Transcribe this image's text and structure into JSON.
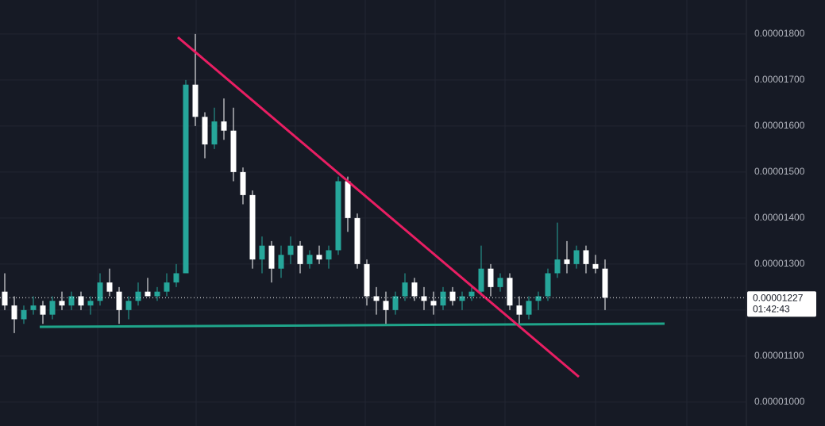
{
  "chart_data": {
    "type": "candlestick",
    "up_color": "#26a69a",
    "down_color": "#ffffff",
    "ylim": [
      9.48e-06,
      1.874e-05
    ],
    "yticks": [
      {
        "value": 1e-05,
        "label": "0.00001000"
      },
      {
        "value": 1.1e-05,
        "label": "0.00001100"
      },
      {
        "value": 1.2e-05,
        "label": "0.00001200"
      },
      {
        "value": 1.3e-05,
        "label": "0.00001300"
      },
      {
        "value": 1.4e-05,
        "label": "0.00001400"
      },
      {
        "value": 1.5e-05,
        "label": "0.00001500"
      },
      {
        "value": 1.6e-05,
        "label": "0.00001600"
      },
      {
        "value": 1.7e-05,
        "label": "0.00001700"
      },
      {
        "value": 1.8e-05,
        "label": "0.00001800"
      }
    ],
    "grid": true,
    "open": [
      1.24e-05,
      1.21e-05,
      1.18e-05,
      1.2e-05,
      1.21e-05,
      1.19e-05,
      1.22e-05,
      1.21e-05,
      1.23e-05,
      1.21e-05,
      1.22e-05,
      1.26e-05,
      1.24e-05,
      1.2e-05,
      1.22e-05,
      1.24e-05,
      1.23e-05,
      1.24e-05,
      1.26e-05,
      1.28e-05,
      1.69e-05,
      1.62e-05,
      1.56e-05,
      1.61e-05,
      1.59e-05,
      1.5e-05,
      1.45e-05,
      1.31e-05,
      1.34e-05,
      1.29e-05,
      1.32e-05,
      1.34e-05,
      1.3e-05,
      1.32e-05,
      1.31e-05,
      1.33e-05,
      1.48e-05,
      1.4e-05,
      1.3e-05,
      1.23e-05,
      1.22e-05,
      1.2e-05,
      1.23e-05,
      1.26e-05,
      1.23e-05,
      1.22e-05,
      1.21e-05,
      1.24e-05,
      1.22e-05,
      1.23e-05,
      1.24e-05,
      1.29e-05,
      1.25e-05,
      1.27e-05,
      1.21e-05,
      1.19e-05,
      1.22e-05,
      1.23e-05,
      1.28e-05,
      1.31e-05,
      1.3e-05,
      1.33e-05,
      1.3e-05,
      1.29e-05
    ],
    "high": [
      1.28e-05,
      1.23e-05,
      1.21e-05,
      1.23e-05,
      1.22e-05,
      1.23e-05,
      1.24e-05,
      1.24e-05,
      1.24e-05,
      1.23e-05,
      1.28e-05,
      1.29e-05,
      1.25e-05,
      1.23e-05,
      1.26e-05,
      1.27e-05,
      1.25e-05,
      1.28e-05,
      1.3e-05,
      1.7e-05,
      1.8e-05,
      1.63e-05,
      1.64e-05,
      1.66e-05,
      1.64e-05,
      1.51e-05,
      1.46e-05,
      1.36e-05,
      1.35e-05,
      1.34e-05,
      1.36e-05,
      1.35e-05,
      1.33e-05,
      1.34e-05,
      1.34e-05,
      1.49e-05,
      1.49e-05,
      1.41e-05,
      1.31e-05,
      1.25e-05,
      1.24e-05,
      1.24e-05,
      1.28e-05,
      1.27e-05,
      1.25e-05,
      1.24e-05,
      1.25e-05,
      1.25e-05,
      1.24e-05,
      1.25e-05,
      1.34e-05,
      1.3e-05,
      1.28e-05,
      1.28e-05,
      1.23e-05,
      1.23e-05,
      1.24e-05,
      1.29e-05,
      1.39e-05,
      1.35e-05,
      1.34e-05,
      1.34e-05,
      1.32e-05,
      1.31e-05
    ],
    "low": [
      1.2e-05,
      1.15e-05,
      1.17e-05,
      1.19e-05,
      1.17e-05,
      1.18e-05,
      1.2e-05,
      1.2e-05,
      1.2e-05,
      1.19e-05,
      1.21e-05,
      1.23e-05,
      1.17e-05,
      1.18e-05,
      1.21e-05,
      1.23e-05,
      1.22e-05,
      1.23e-05,
      1.25e-05,
      1.28e-05,
      1.6e-05,
      1.53e-05,
      1.55e-05,
      1.57e-05,
      1.48e-05,
      1.43e-05,
      1.29e-05,
      1.28e-05,
      1.26e-05,
      1.27e-05,
      1.3e-05,
      1.28e-05,
      1.29e-05,
      1.3e-05,
      1.29e-05,
      1.32e-05,
      1.37e-05,
      1.29e-05,
      1.21e-05,
      1.19e-05,
      1.17e-05,
      1.19e-05,
      1.22e-05,
      1.22e-05,
      1.2e-05,
      1.19e-05,
      1.2e-05,
      1.21e-05,
      1.2e-05,
      1.22e-05,
      1.23e-05,
      1.23e-05,
      1.24e-05,
      1.2e-05,
      1.17e-05,
      1.18e-05,
      1.2e-05,
      1.22e-05,
      1.27e-05,
      1.28e-05,
      1.29e-05,
      1.28e-05,
      1.28e-05,
      1.2e-05
    ],
    "close": [
      1.21e-05,
      1.18e-05,
      1.2e-05,
      1.21e-05,
      1.19e-05,
      1.22e-05,
      1.21e-05,
      1.23e-05,
      1.21e-05,
      1.22e-05,
      1.26e-05,
      1.24e-05,
      1.2e-05,
      1.22e-05,
      1.24e-05,
      1.23e-05,
      1.24e-05,
      1.26e-05,
      1.28e-05,
      1.69e-05,
      1.62e-05,
      1.56e-05,
      1.61e-05,
      1.59e-05,
      1.5e-05,
      1.45e-05,
      1.31e-05,
      1.34e-05,
      1.29e-05,
      1.32e-05,
      1.34e-05,
      1.3e-05,
      1.32e-05,
      1.31e-05,
      1.33e-05,
      1.48e-05,
      1.4e-05,
      1.3e-05,
      1.23e-05,
      1.22e-05,
      1.2e-05,
      1.23e-05,
      1.26e-05,
      1.23e-05,
      1.22e-05,
      1.21e-05,
      1.24e-05,
      1.22e-05,
      1.23e-05,
      1.24e-05,
      1.29e-05,
      1.25e-05,
      1.27e-05,
      1.21e-05,
      1.19e-05,
      1.22e-05,
      1.23e-05,
      1.28e-05,
      1.31e-05,
      1.3e-05,
      1.33e-05,
      1.3e-05,
      1.29e-05,
      1.227e-05
    ],
    "last_price": {
      "value": 1.227e-05,
      "label": "0.00001227"
    },
    "countdown": "01:42:43"
  }
}
